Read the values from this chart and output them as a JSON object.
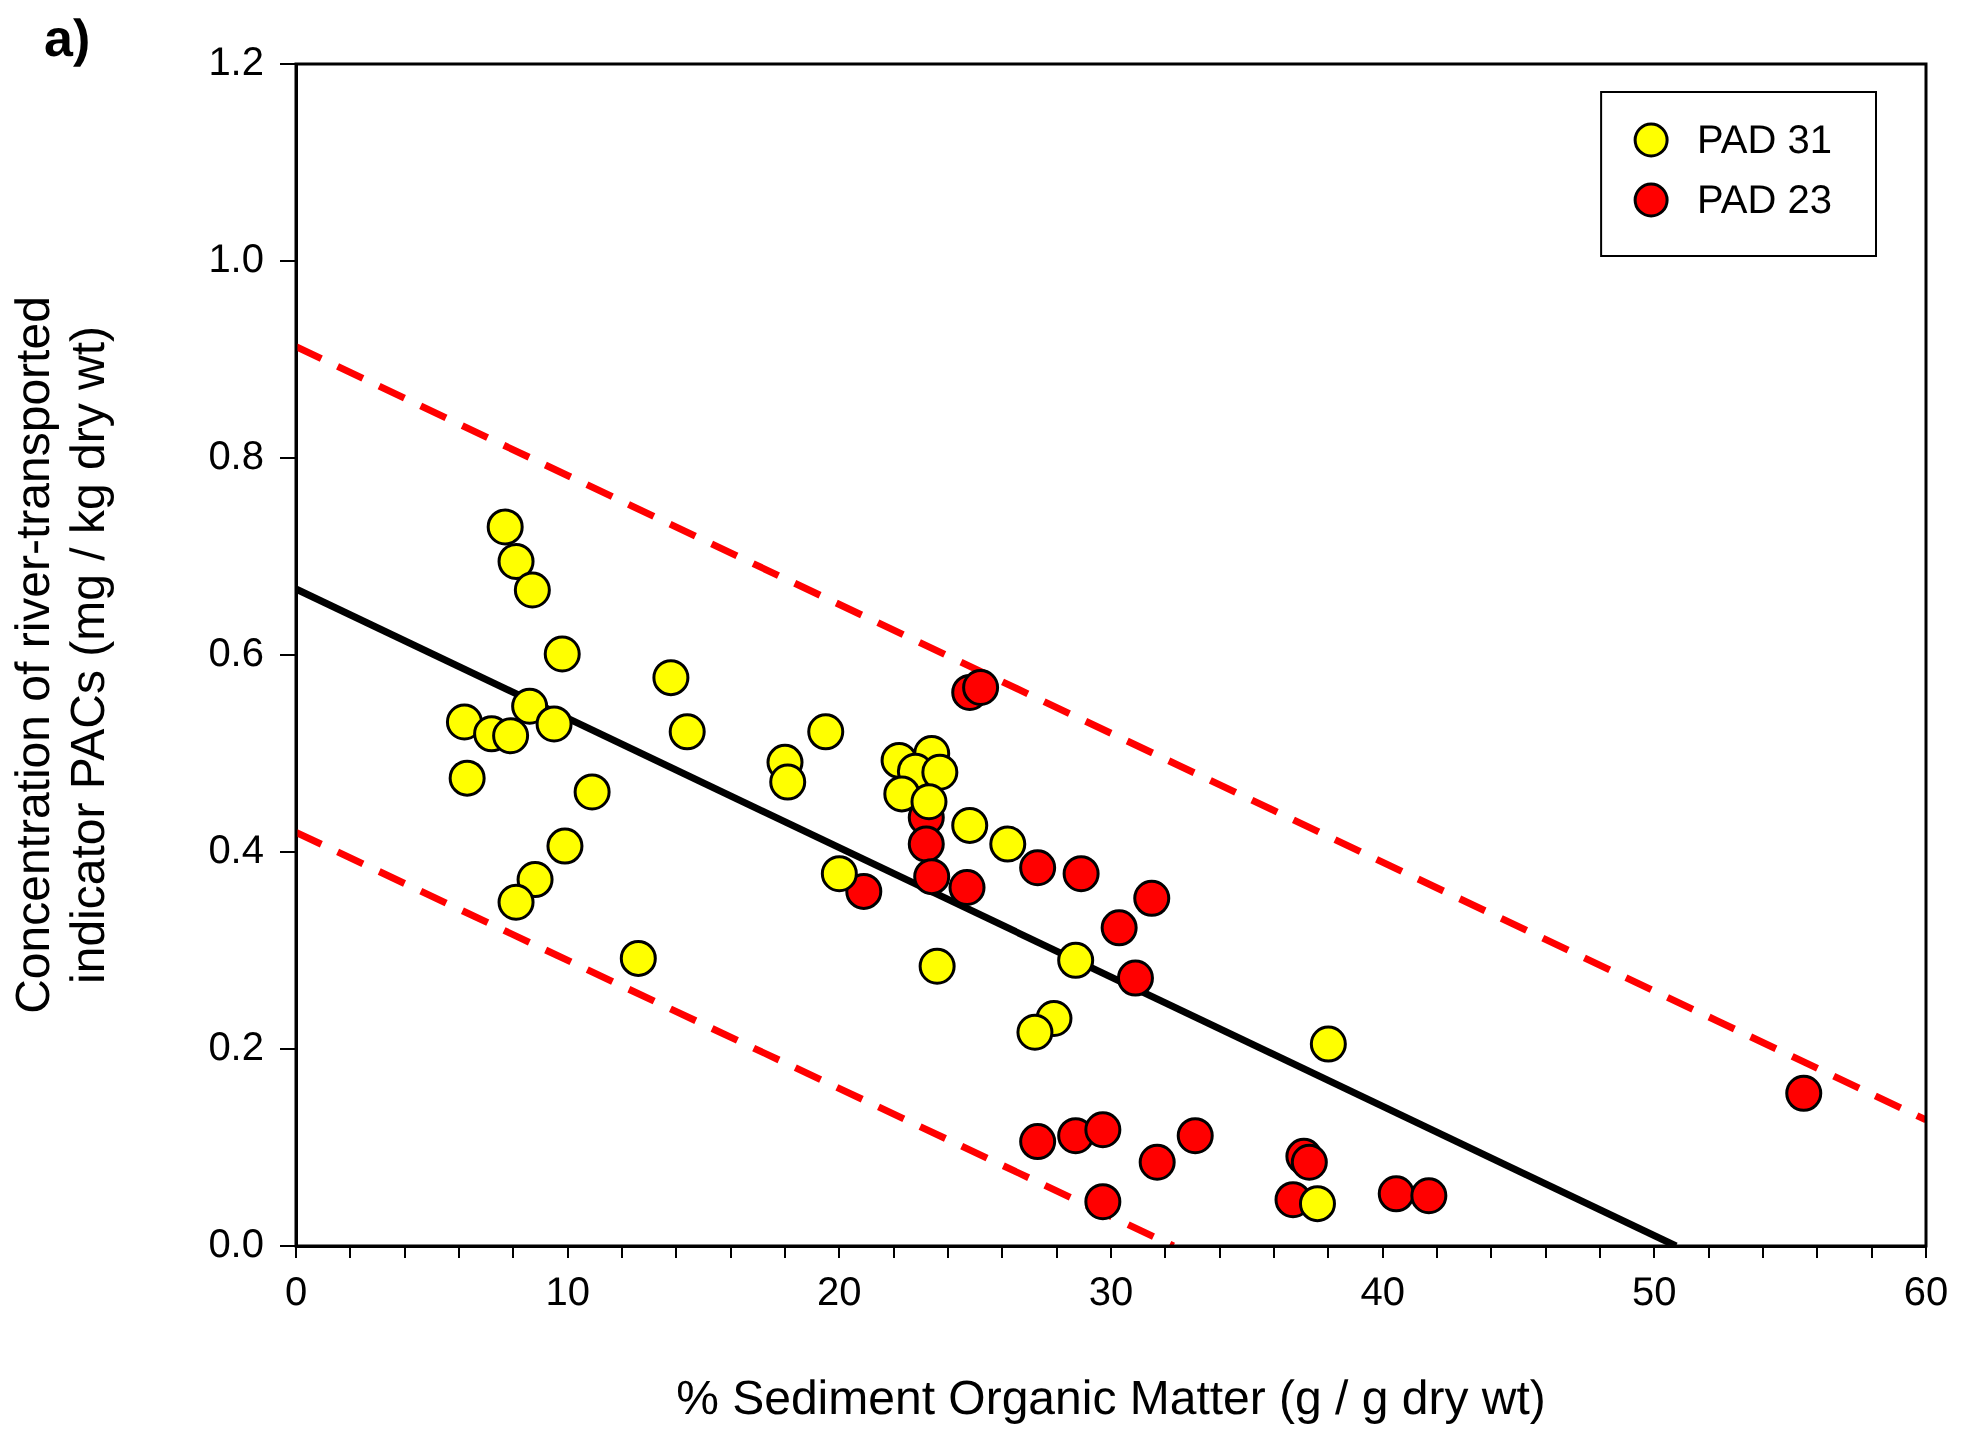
{
  "chart_data": {
    "type": "scatter",
    "xlabel": "% Sediment Organic Matter (g / g dry wt)",
    "ylabel": "Concentration of river-transported\nindicator PACs (mg / kg dry wt)",
    "annotations": [
      "a)"
    ],
    "xlim": [
      0,
      60
    ],
    "ylim": [
      0,
      1.2
    ],
    "xticks": [
      0,
      {
        "value": 2,
        "label": null
      },
      {
        "value": 4,
        "label": null
      },
      {
        "value": 6,
        "label": null
      },
      {
        "value": 8,
        "label": null
      },
      10,
      {
        "value": 12,
        "label": null
      },
      {
        "value": 14,
        "label": null
      },
      {
        "value": 16,
        "label": null
      },
      {
        "value": 18,
        "label": null
      },
      20,
      {
        "value": 22,
        "label": null
      },
      {
        "value": 24,
        "label": null
      },
      {
        "value": 26,
        "label": null
      },
      {
        "value": 28,
        "label": null
      },
      30,
      {
        "value": 32,
        "label": null
      },
      {
        "value": 34,
        "label": null
      },
      {
        "value": 36,
        "label": null
      },
      {
        "value": 38,
        "label": null
      },
      40,
      {
        "value": 42,
        "label": null
      },
      {
        "value": 44,
        "label": null
      },
      {
        "value": 46,
        "label": null
      },
      {
        "value": 48,
        "label": null
      },
      50,
      {
        "value": 52,
        "label": null
      },
      {
        "value": 54,
        "label": null
      },
      {
        "value": 56,
        "label": null
      },
      {
        "value": 58,
        "label": null
      },
      60
    ],
    "yticks": [
      {
        "value": 0,
        "label": "0.0"
      },
      {
        "value": 0.2,
        "label": "0.2"
      },
      {
        "value": 0.4,
        "label": "0.4"
      },
      {
        "value": 0.6,
        "label": "0.6"
      },
      {
        "value": 0.8,
        "label": "0.8"
      },
      {
        "value": 1,
        "label": "1.0"
      },
      {
        "value": 1.2,
        "label": "1.2"
      }
    ],
    "grid": false,
    "legend": "top right",
    "marker": "circle",
    "series": [
      {
        "name": "PAD 31",
        "color": "#ffff00",
        "x": [
          7.7,
          8.1,
          8.7,
          9.8,
          6.2,
          6.3,
          7.2,
          7.9,
          8.6,
          9.5,
          10.9,
          9.9,
          8.8,
          8.1,
          12.6,
          13.8,
          14.4,
          18.0,
          18.1,
          19.5,
          22.2,
          23.4,
          22.8,
          23.7,
          22.3,
          23.3,
          24.8,
          26.2,
          20.0,
          23.6,
          28.7,
          27.9,
          27.2,
          38.0,
          37.6
        ],
        "values": [
          0.73,
          0.695,
          0.666,
          0.601,
          0.532,
          0.475,
          0.52,
          0.518,
          0.548,
          0.53,
          0.461,
          0.406,
          0.372,
          0.349,
          0.292,
          0.577,
          0.522,
          0.491,
          0.471,
          0.522,
          0.493,
          0.5,
          0.482,
          0.481,
          0.459,
          0.451,
          0.427,
          0.408,
          0.378,
          0.284,
          0.29,
          0.231,
          0.217,
          0.205,
          0.043
        ]
      },
      {
        "name": "PAD 23",
        "color": "#ff0000",
        "x": [
          24.8,
          25.2,
          23.2,
          23.2,
          23.4,
          20.9,
          24.7,
          27.3,
          28.9,
          31.5,
          30.3,
          30.9,
          27.3,
          28.7,
          29.7,
          31.7,
          33.1,
          37.1,
          37.3,
          29.7,
          36.7,
          40.5,
          41.7,
          55.5
        ],
        "values": [
          0.562,
          0.567,
          0.435,
          0.408,
          0.375,
          0.36,
          0.364,
          0.384,
          0.378,
          0.353,
          0.323,
          0.272,
          0.106,
          0.112,
          0.118,
          0.085,
          0.112,
          0.091,
          0.085,
          0.045,
          0.047,
          0.053,
          0.051,
          0.155
        ]
      },
      {
        "type": "line",
        "color": "#000000",
        "line_style": "solid",
        "marker": "none",
        "x": [
          0,
          50.8
        ],
        "values": [
          0.667,
          0
        ]
      },
      {
        "type": "line",
        "color": "#ff0000",
        "line_style": "dashed",
        "marker": "none",
        "x": [
          0,
          60
        ],
        "values": [
          0.913,
          0.128
        ]
      },
      {
        "type": "line",
        "color": "#ff0000",
        "line_style": "dashed",
        "marker": "none",
        "x": [
          0,
          32.3
        ],
        "values": [
          0.42,
          0
        ]
      }
    ]
  }
}
